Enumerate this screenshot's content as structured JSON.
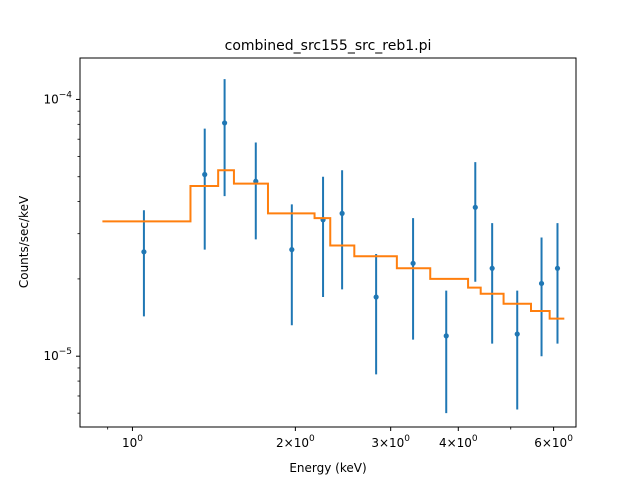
{
  "chart_data": {
    "type": "scatter",
    "title": "combined_src155_src_reb1.pi",
    "xlabel": "Energy (keV)",
    "ylabel": "Counts/sec/keV",
    "xscale": "log",
    "yscale": "log",
    "xlim": [
      0.8,
      6.6
    ],
    "ylim": [
      5.3e-06,
      0.000145
    ],
    "grid": false,
    "x_ticks": [
      {
        "value": 1,
        "label": "10⁰"
      },
      {
        "value": 2,
        "label": "2×10⁰"
      },
      {
        "value": 3,
        "label": "3×10⁰"
      },
      {
        "value": 4,
        "label": "4×10⁰"
      },
      {
        "value": 6,
        "label": "6×10⁰"
      }
    ],
    "x_minor_ticks": [
      0.9,
      5
    ],
    "y_ticks": [
      {
        "value": 1e-05,
        "label": "10⁻⁵"
      },
      {
        "value": 0.0001,
        "label": "10⁻⁴"
      }
    ],
    "y_minor_ticks": [
      6e-06,
      7e-06,
      8e-06,
      9e-06,
      2e-05,
      3e-05,
      4e-05,
      5e-05,
      6e-05,
      7e-05,
      8e-05,
      9e-05
    ],
    "colors": {
      "data": "#1f77b4",
      "model": "#ff7f0e"
    },
    "series": [
      {
        "kind": "errorbar",
        "x": [
          1.05,
          1.36,
          1.48,
          1.69,
          1.97,
          2.25,
          2.44,
          2.82,
          3.3,
          3.8,
          4.3,
          4.62,
          5.14,
          5.7,
          6.1
        ],
        "y": [
          2.55e-05,
          5.1e-05,
          8.1e-05,
          4.8e-05,
          2.6e-05,
          3.4e-05,
          3.6e-05,
          1.7e-05,
          2.3e-05,
          1.2e-05,
          3.8e-05,
          2.2e-05,
          1.22e-05,
          1.92e-05,
          2.2e-05
        ],
        "y_low": [
          1.43e-05,
          2.6e-05,
          4.2e-05,
          2.85e-05,
          1.32e-05,
          1.7e-05,
          1.82e-05,
          8.5e-06,
          1.16e-05,
          6e-06,
          1.95e-05,
          1.12e-05,
          6.2e-06,
          1e-05,
          1.12e-05
        ],
        "y_high": [
          3.7e-05,
          7.7e-05,
          0.00012,
          6.8e-05,
          3.9e-05,
          5e-05,
          5.3e-05,
          2.5e-05,
          3.45e-05,
          1.8e-05,
          5.7e-05,
          3.3e-05,
          1.8e-05,
          2.9e-05,
          3.3e-05
        ]
      },
      {
        "kind": "step",
        "edges": [
          0.88,
          1.28,
          1.44,
          1.54,
          1.78,
          2.17,
          2.32,
          2.57,
          3.08,
          3.55,
          4.17,
          4.4,
          4.85,
          5.45,
          5.9,
          6.28
        ],
        "values": [
          3.35e-05,
          4.6e-05,
          5.3e-05,
          4.7e-05,
          3.6e-05,
          3.45e-05,
          2.7e-05,
          2.45e-05,
          2.2e-05,
          2e-05,
          1.85e-05,
          1.75e-05,
          1.6e-05,
          1.5e-05,
          1.4e-05
        ]
      }
    ]
  }
}
